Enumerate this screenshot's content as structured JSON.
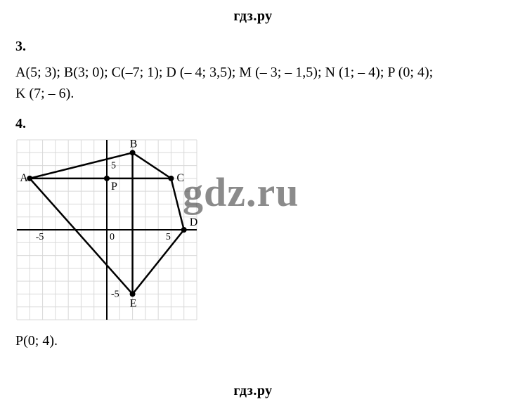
{
  "site": {
    "name": "гдз.ру"
  },
  "problem3": {
    "number": "3.",
    "line1": "A(5; 3); B(3; 0); C(–7; 1); D (– 4; 3,5); M (– 3; – 1,5); N (1; – 4); P (0; 4);",
    "line2": "K (7; – 6)."
  },
  "problem4": {
    "number": "4.",
    "answer": "P(0; 4).",
    "chart": {
      "type": "line-polygon-on-grid",
      "xlim": [
        -7,
        7
      ],
      "ylim": [
        -7,
        7
      ],
      "tick_step": 1,
      "labeled_ticks_x": [
        -5,
        0,
        5
      ],
      "labeled_ticks_y": [
        -5,
        5
      ],
      "grid_color": "#d9d9d9",
      "axis_color": "#000000",
      "background_color": "#ffffff",
      "line_width": 2.5,
      "vertex_radius": 4,
      "points": {
        "A": {
          "x": -6,
          "y": 4,
          "label_dx": -14,
          "label_dy": 4
        },
        "B": {
          "x": 2,
          "y": 6,
          "label_dx": -4,
          "label_dy": -8
        },
        "C": {
          "x": 5,
          "y": 4,
          "label_dx": 8,
          "label_dy": 4
        },
        "D": {
          "x": 6,
          "y": 0,
          "label_dx": 8,
          "label_dy": -6
        },
        "E": {
          "x": 2,
          "y": -5,
          "label_dx": -4,
          "label_dy": 18
        },
        "P": {
          "x": 0,
          "y": 4,
          "label_dx": 6,
          "label_dy": 16
        }
      },
      "polygon_order": [
        "A",
        "B",
        "C",
        "D",
        "E",
        "A"
      ],
      "extra_segments": [
        {
          "from": "A",
          "to": "C"
        },
        {
          "from": "B",
          "to": "E"
        }
      ]
    }
  },
  "watermark": "gdz.ru"
}
